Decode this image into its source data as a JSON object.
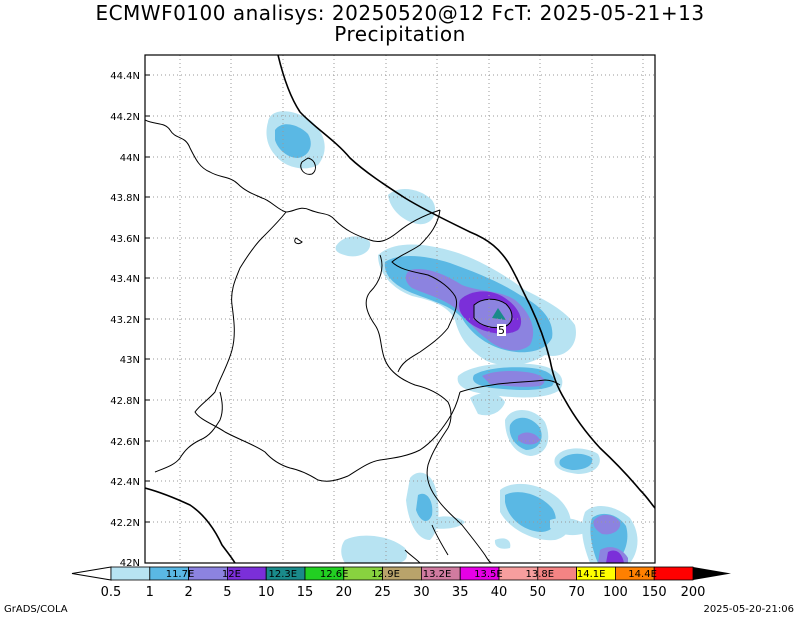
{
  "header": {
    "title_line1": "ECMWF0100 analisys: 20250520@12 FcT: 2025-05-21+13",
    "title_line2": "Precipitation"
  },
  "axes": {
    "lat_labels": [
      "44.4N",
      "44.2N",
      "44N",
      "43.8N",
      "43.6N",
      "43.4N",
      "43.2N",
      "43N",
      "42.8N",
      "42.6N",
      "42.4N",
      "42.2N",
      "42N"
    ],
    "lon_labels": [
      "11.7E",
      "12E",
      "12.3E",
      "12.6E",
      "12.9E",
      "13.2E",
      "13.5E",
      "13.8E",
      "14.1E",
      "14.4E"
    ]
  },
  "contour_label": "5",
  "colorbar": {
    "ticks": [
      "0.5",
      "1",
      "2",
      "5",
      "10",
      "15",
      "20",
      "25",
      "30",
      "35",
      "40",
      "50",
      "70",
      "100",
      "150",
      "200"
    ],
    "colors": [
      "#ffffff",
      "#b7e3f2",
      "#5ab8e4",
      "#8c83e0",
      "#7b2fd9",
      "#1a8a8a",
      "#22d022",
      "#88d23f",
      "#b9a36b",
      "#d07ba0",
      "#e600e6",
      "#f79e9e",
      "#f48484",
      "#ffff00",
      "#ff8000",
      "#ff0000",
      "#800000"
    ]
  },
  "footer": {
    "left": "GrADS/COLA",
    "right": "2025-05-20-21:06"
  }
}
